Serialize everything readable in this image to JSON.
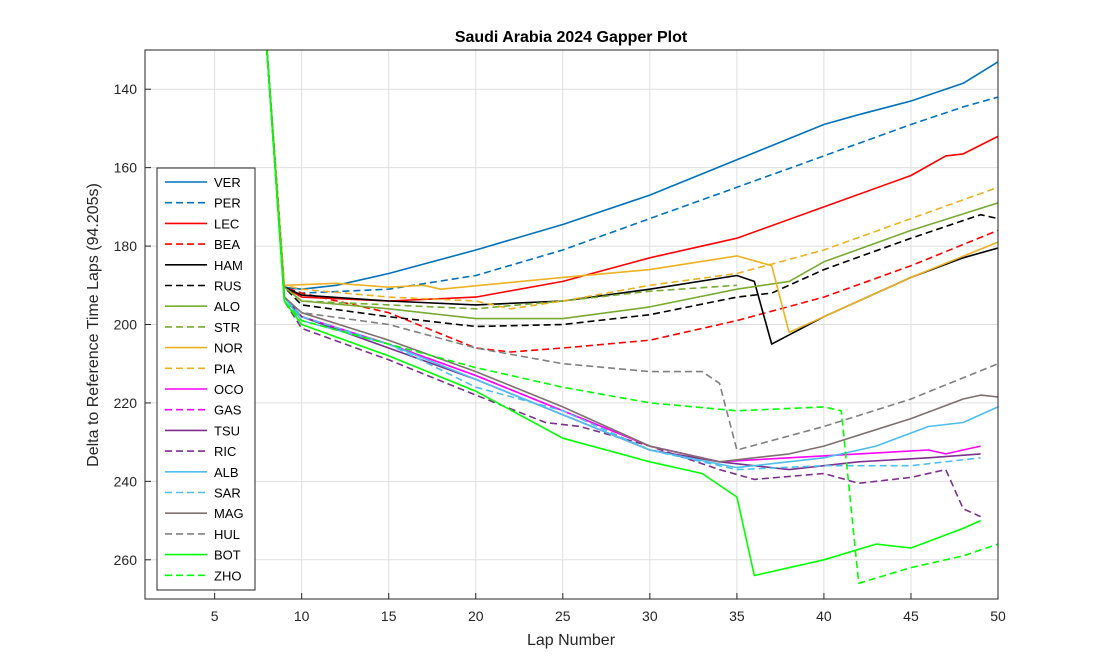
{
  "chart_data": {
    "type": "line",
    "title": "Saudi Arabia 2024 Gapper Plot",
    "xlabel": "Lap Number",
    "ylabel": "Delta to Reference Time Laps (94.205s)",
    "xlim": [
      1,
      50
    ],
    "ylim": [
      270,
      130
    ],
    "y_reversed": true,
    "xticks": [
      5,
      10,
      15,
      20,
      25,
      30,
      35,
      40,
      45,
      50
    ],
    "yticks": [
      140,
      160,
      180,
      200,
      220,
      240,
      260
    ],
    "grid": true,
    "legend_position": "left",
    "series": [
      {
        "name": "VER",
        "color": "#0072BD",
        "dash": false,
        "points": [
          [
            8,
            130
          ],
          [
            9,
            190.5
          ],
          [
            10,
            191
          ],
          [
            12,
            190
          ],
          [
            15,
            187
          ],
          [
            20,
            181
          ],
          [
            25,
            174.5
          ],
          [
            30,
            167
          ],
          [
            35,
            158
          ],
          [
            40,
            149
          ],
          [
            42,
            146.5
          ],
          [
            45,
            143
          ],
          [
            48,
            138.5
          ],
          [
            50,
            133
          ]
        ]
      },
      {
        "name": "PER",
        "color": "#0072BD",
        "dash": true,
        "points": [
          [
            8,
            130
          ],
          [
            9,
            190.5
          ],
          [
            10,
            192
          ],
          [
            15,
            191
          ],
          [
            20,
            187.5
          ],
          [
            25,
            181
          ],
          [
            30,
            173
          ],
          [
            35,
            165
          ],
          [
            40,
            157
          ],
          [
            45,
            149
          ],
          [
            48,
            144.5
          ],
          [
            50,
            142
          ]
        ]
      },
      {
        "name": "LEC",
        "color": "#FF0000",
        "dash": false,
        "points": [
          [
            8,
            130
          ],
          [
            9,
            190.5
          ],
          [
            10,
            193
          ],
          [
            15,
            194
          ],
          [
            20,
            193
          ],
          [
            25,
            189
          ],
          [
            30,
            183
          ],
          [
            35,
            178
          ],
          [
            40,
            170
          ],
          [
            45,
            162
          ],
          [
            47,
            157
          ],
          [
            48,
            156.5
          ],
          [
            50,
            152
          ]
        ]
      },
      {
        "name": "BEA",
        "color": "#FF0000",
        "dash": true,
        "points": [
          [
            8,
            130
          ],
          [
            9,
            190.5
          ],
          [
            10,
            192
          ],
          [
            15,
            197
          ],
          [
            20,
            206
          ],
          [
            22,
            207
          ],
          [
            25,
            206
          ],
          [
            30,
            204
          ],
          [
            35,
            199
          ],
          [
            40,
            193
          ],
          [
            45,
            185
          ],
          [
            50,
            176
          ]
        ]
      },
      {
        "name": "HAM",
        "color": "#000000",
        "dash": false,
        "points": [
          [
            8,
            130
          ],
          [
            9,
            190.5
          ],
          [
            10,
            192.5
          ],
          [
            15,
            194
          ],
          [
            20,
            195
          ],
          [
            25,
            194
          ],
          [
            30,
            191
          ],
          [
            35,
            187.5
          ],
          [
            36,
            189
          ],
          [
            37,
            205
          ],
          [
            40,
            198
          ],
          [
            45,
            188
          ],
          [
            48,
            183
          ],
          [
            50,
            180.5
          ]
        ]
      },
      {
        "name": "RUS",
        "color": "#000000",
        "dash": true,
        "points": [
          [
            8,
            130
          ],
          [
            9,
            190.5
          ],
          [
            10,
            195
          ],
          [
            15,
            198
          ],
          [
            20,
            200.5
          ],
          [
            25,
            200
          ],
          [
            30,
            197.5
          ],
          [
            35,
            193
          ],
          [
            37,
            192
          ],
          [
            40,
            186
          ],
          [
            45,
            178
          ],
          [
            49,
            172
          ],
          [
            50,
            173
          ]
        ]
      },
      {
        "name": "ALO",
        "color": "#77AC30",
        "dash": false,
        "points": [
          [
            8,
            130
          ],
          [
            9,
            190.5
          ],
          [
            10,
            194
          ],
          [
            15,
            196
          ],
          [
            20,
            198.5
          ],
          [
            25,
            198.5
          ],
          [
            30,
            195.5
          ],
          [
            35,
            191
          ],
          [
            38,
            189
          ],
          [
            40,
            184
          ],
          [
            45,
            176
          ],
          [
            50,
            169
          ]
        ]
      },
      {
        "name": "STR",
        "color": "#77AC30",
        "dash": true,
        "points": [
          [
            8,
            130
          ],
          [
            9,
            190.5
          ],
          [
            10,
            194
          ],
          [
            15,
            195
          ],
          [
            20,
            196
          ],
          [
            25,
            194
          ],
          [
            30,
            191.5
          ],
          [
            35,
            190
          ]
        ]
      },
      {
        "name": "NOR",
        "color": "#EDB120",
        "dash": false,
        "points": [
          [
            8,
            130
          ],
          [
            9,
            190
          ],
          [
            12,
            189.5
          ],
          [
            15,
            190.5
          ],
          [
            17,
            190
          ],
          [
            18,
            191
          ],
          [
            25,
            188
          ],
          [
            30,
            186
          ],
          [
            35,
            182.5
          ],
          [
            37,
            185
          ],
          [
            38,
            202
          ],
          [
            40,
            198
          ],
          [
            45,
            188
          ],
          [
            50,
            179
          ]
        ]
      },
      {
        "name": "PIA",
        "color": "#EDB120",
        "dash": true,
        "points": [
          [
            8,
            130
          ],
          [
            9,
            190
          ],
          [
            10,
            191
          ],
          [
            15,
            193
          ],
          [
            20,
            194
          ],
          [
            22,
            196
          ],
          [
            25,
            194
          ],
          [
            30,
            190
          ],
          [
            35,
            187
          ],
          [
            40,
            181
          ],
          [
            45,
            173
          ],
          [
            50,
            165
          ]
        ]
      },
      {
        "name": "OCO",
        "color": "#FF00FF",
        "dash": false,
        "points": [
          [
            8,
            130
          ],
          [
            9,
            193
          ],
          [
            10,
            198
          ],
          [
            15,
            205
          ],
          [
            20,
            213
          ],
          [
            25,
            222
          ],
          [
            30,
            231
          ],
          [
            34,
            235
          ],
          [
            38,
            234
          ],
          [
            42,
            233
          ],
          [
            46,
            232
          ],
          [
            47,
            233
          ],
          [
            49,
            231
          ]
        ]
      },
      {
        "name": "GAS",
        "color": "#FF00FF",
        "dash": true,
        "points": [
          [
            8,
            130
          ],
          [
            9,
            193
          ],
          [
            10,
            198
          ],
          [
            15,
            205
          ],
          [
            20,
            213
          ],
          [
            25,
            222
          ],
          [
            30,
            231
          ],
          [
            34,
            235
          ]
        ]
      },
      {
        "name": "TSU",
        "color": "#7E2F8E",
        "dash": false,
        "points": [
          [
            8,
            130
          ],
          [
            9,
            193
          ],
          [
            10,
            198
          ],
          [
            15,
            206
          ],
          [
            20,
            214
          ],
          [
            25,
            223
          ],
          [
            30,
            232
          ],
          [
            34,
            235
          ],
          [
            38,
            237
          ],
          [
            42,
            235
          ],
          [
            46,
            234
          ],
          [
            49,
            233
          ]
        ]
      },
      {
        "name": "RIC",
        "color": "#7E2F8E",
        "dash": true,
        "points": [
          [
            8,
            130
          ],
          [
            9,
            194
          ],
          [
            10,
            201
          ],
          [
            15,
            209
          ],
          [
            20,
            218
          ],
          [
            24,
            225
          ],
          [
            26,
            226
          ],
          [
            30,
            231
          ],
          [
            34,
            237
          ],
          [
            36,
            239.5
          ],
          [
            40,
            238
          ],
          [
            42,
            240.5
          ],
          [
            45,
            239
          ],
          [
            47,
            237
          ],
          [
            48,
            247
          ],
          [
            49,
            249
          ]
        ]
      },
      {
        "name": "ALB",
        "color": "#4DBEEE",
        "dash": false,
        "points": [
          [
            8,
            130
          ],
          [
            9,
            193
          ],
          [
            10,
            199
          ],
          [
            15,
            205
          ],
          [
            20,
            214
          ],
          [
            25,
            223
          ],
          [
            30,
            232
          ],
          [
            35,
            236.5
          ],
          [
            40,
            234
          ],
          [
            43,
            231
          ],
          [
            46,
            226
          ],
          [
            48,
            225
          ],
          [
            50,
            221
          ]
        ]
      },
      {
        "name": "SAR",
        "color": "#4DBEEE",
        "dash": true,
        "points": [
          [
            8,
            130
          ],
          [
            9,
            193
          ],
          [
            10,
            198
          ],
          [
            15,
            205
          ],
          [
            20,
            216
          ],
          [
            25,
            222
          ],
          [
            30,
            232
          ],
          [
            35,
            237
          ],
          [
            40,
            236
          ],
          [
            45,
            236
          ],
          [
            49,
            234
          ]
        ]
      },
      {
        "name": "MAG",
        "color": "#7F6F6F",
        "dash": false,
        "points": [
          [
            8,
            130
          ],
          [
            9,
            193
          ],
          [
            10,
            197
          ],
          [
            15,
            204
          ],
          [
            20,
            212
          ],
          [
            25,
            221
          ],
          [
            30,
            231
          ],
          [
            34,
            235
          ],
          [
            38,
            233
          ],
          [
            40,
            231
          ],
          [
            45,
            224
          ],
          [
            48,
            219
          ],
          [
            49,
            218
          ],
          [
            50,
            218.5
          ]
        ]
      },
      {
        "name": "HUL",
        "color": "#808080",
        "dash": true,
        "points": [
          [
            8,
            130
          ],
          [
            9,
            193
          ],
          [
            10,
            197
          ],
          [
            15,
            200
          ],
          [
            20,
            206
          ],
          [
            25,
            210
          ],
          [
            30,
            212
          ],
          [
            33,
            212
          ],
          [
            34,
            215
          ],
          [
            35,
            232
          ],
          [
            40,
            226
          ],
          [
            45,
            219
          ],
          [
            50,
            210
          ]
        ]
      },
      {
        "name": "BOT",
        "color": "#00FF00",
        "dash": false,
        "points": [
          [
            8,
            130
          ],
          [
            9,
            194
          ],
          [
            10,
            200
          ],
          [
            15,
            208
          ],
          [
            20,
            217
          ],
          [
            25,
            229
          ],
          [
            30,
            235
          ],
          [
            33,
            238
          ],
          [
            35,
            244
          ],
          [
            36,
            264
          ],
          [
            40,
            260
          ],
          [
            43,
            256
          ],
          [
            45,
            257
          ],
          [
            48,
            252
          ],
          [
            49,
            250
          ]
        ]
      },
      {
        "name": "ZHO",
        "color": "#00FF00",
        "dash": true,
        "points": [
          [
            8,
            130
          ],
          [
            9,
            194
          ],
          [
            10,
            199
          ],
          [
            15,
            205
          ],
          [
            20,
            211
          ],
          [
            25,
            216
          ],
          [
            30,
            220
          ],
          [
            35,
            222
          ],
          [
            40,
            221
          ],
          [
            41,
            222
          ],
          [
            42,
            266
          ],
          [
            45,
            262
          ],
          [
            48,
            259
          ],
          [
            50,
            256
          ]
        ]
      }
    ]
  }
}
